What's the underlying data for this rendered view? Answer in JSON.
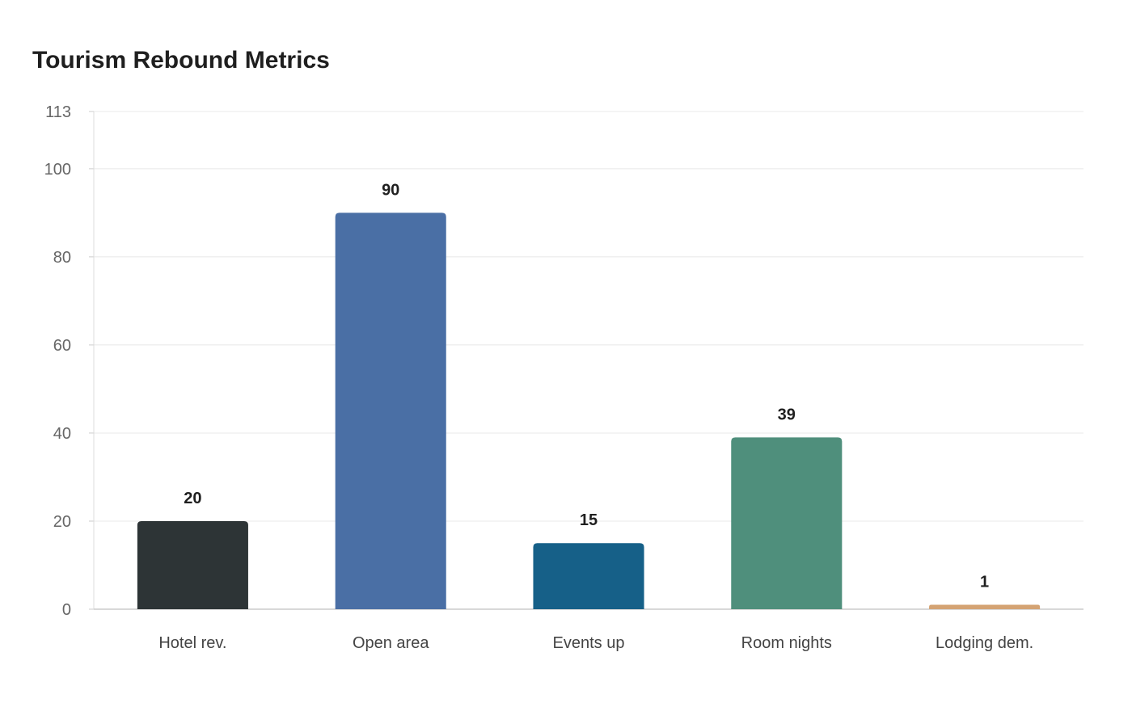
{
  "chart_data": {
    "type": "bar",
    "title": "Tourism Rebound Metrics",
    "categories": [
      "Hotel rev.",
      "Open area",
      "Events up",
      "Room nights",
      "Lodging dem."
    ],
    "values": [
      20,
      90,
      15,
      39,
      1
    ],
    "data_labels": [
      "20",
      "90",
      "15",
      "39",
      "1"
    ],
    "colors": [
      "#2d3436",
      "#4a6fa5",
      "#166088",
      "#4f8f7c",
      "#d4a373"
    ],
    "yticks": [
      0,
      20,
      40,
      60,
      80,
      100,
      113
    ],
    "ylim": [
      0,
      113
    ],
    "xlabel": "",
    "ylabel": "",
    "grid": true,
    "legend": "none"
  }
}
